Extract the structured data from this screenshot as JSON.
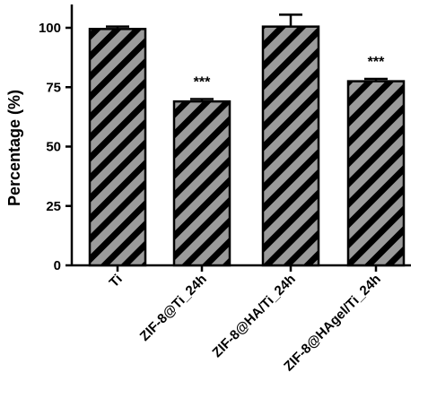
{
  "chart_data": {
    "type": "bar",
    "ylabel": "Percentage (%)",
    "ylim": [
      0,
      100
    ],
    "yticks": [
      0,
      25,
      50,
      75,
      100
    ],
    "categories": [
      "Ti",
      "ZIF-8@Ti_24h",
      "ZIF-8@HA/Ti_24h",
      "ZIF-8@HAgel/Ti_24h"
    ],
    "values": [
      99.5,
      69.0,
      100.5,
      77.5
    ],
    "errors": [
      1.0,
      1.0,
      5.0,
      1.0
    ],
    "annotations": [
      "",
      "***",
      "",
      "***"
    ],
    "bar_fill": "diagonal-hatch",
    "colors": {
      "bar_fill": "#9b9b9b",
      "hatch": "#000000",
      "axis": "#000000"
    }
  }
}
